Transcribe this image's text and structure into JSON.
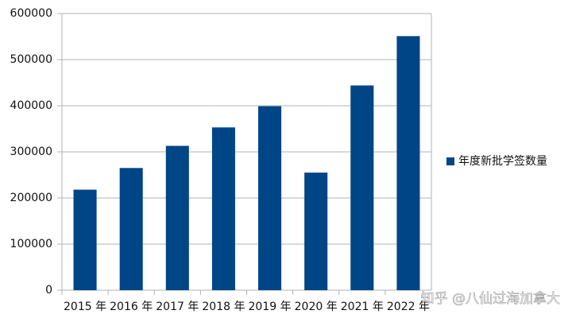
{
  "chart_data": {
    "type": "bar",
    "categories": [
      "2015 年",
      "2016 年",
      "2017 年",
      "2018 年",
      "2019 年",
      "2020 年",
      "2021 年",
      "2022 年"
    ],
    "series": [
      {
        "name": "年度新批学签数量",
        "color": "#004586",
        "values": [
          218000,
          265000,
          313000,
          353000,
          399000,
          255000,
          444000,
          551000
        ]
      }
    ],
    "ylim": [
      0,
      600000
    ],
    "yticks": [
      0,
      100000,
      200000,
      300000,
      400000,
      500000,
      600000
    ],
    "grid": true,
    "legend": "right",
    "watermark": "知乎 @八仙过海加拿大"
  }
}
